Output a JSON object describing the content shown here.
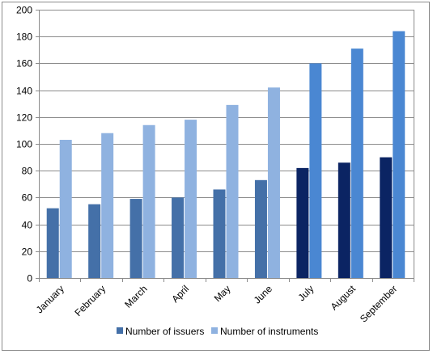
{
  "chart_data": {
    "type": "bar",
    "title": "",
    "xlabel": "",
    "ylabel": "",
    "categories": [
      "January",
      "February",
      "March",
      "April",
      "May",
      "June",
      "July",
      "August",
      "September"
    ],
    "series": [
      {
        "name": "Number of issuers",
        "values": [
          52,
          55,
          59,
          60,
          66,
          73,
          82,
          86,
          90
        ],
        "colors": [
          "#4470a8",
          "#4470a8",
          "#4470a8",
          "#4470a8",
          "#4470a8",
          "#4470a8",
          "#0b2463",
          "#0b2463",
          "#0b2463"
        ]
      },
      {
        "name": "Number of instruments",
        "values": [
          103,
          108,
          114,
          118,
          129,
          142,
          160,
          171,
          184
        ],
        "colors": [
          "#8fb2e0",
          "#8fb2e0",
          "#8fb2e0",
          "#8fb2e0",
          "#8fb2e0",
          "#8fb2e0",
          "#4a87d2",
          "#4a87d2",
          "#4a87d2"
        ]
      }
    ],
    "ylim": [
      0,
      200
    ],
    "yticks": [
      0,
      20,
      40,
      60,
      80,
      100,
      120,
      140,
      160,
      180,
      200
    ],
    "grid": true,
    "legend": {
      "position": "bottom",
      "entries": [
        {
          "label": "Number of issuers",
          "color": "#4470a8"
        },
        {
          "label": "Number of instruments",
          "color": "#8fb2e0"
        }
      ]
    }
  }
}
